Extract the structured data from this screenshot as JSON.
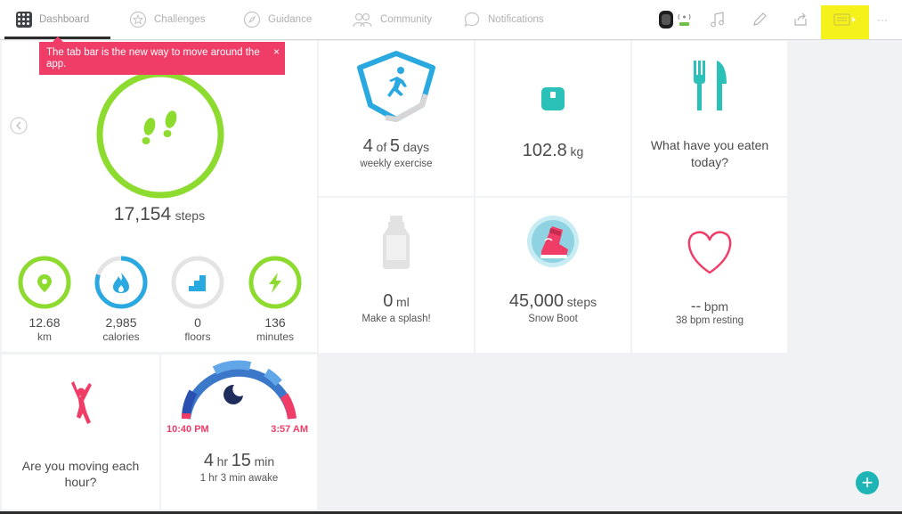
{
  "nav": {
    "tabs": [
      {
        "label": "Dashboard",
        "icon": "fitbit-logo-icon"
      },
      {
        "label": "Challenges",
        "icon": "star-icon"
      },
      {
        "label": "Guidance",
        "icon": "compass-icon"
      },
      {
        "label": "Community",
        "icon": "people-icon"
      },
      {
        "label": "Notifications",
        "icon": "chat-bubble-icon"
      }
    ],
    "right_icons": [
      "watch-sync-icon",
      "music-note-icon",
      "pencil-icon",
      "share-icon",
      "card-icon",
      "more-icon"
    ],
    "more_label": "···"
  },
  "popup": {
    "text": "The tab bar is the new way to move around the app.",
    "close": "×"
  },
  "steps": {
    "value": "17,154",
    "unit": "steps"
  },
  "stats": [
    {
      "value": "12.68",
      "label": "km",
      "icon": "location-pin-icon",
      "color": "#8cdb2e",
      "progress": 1.0
    },
    {
      "value": "2,985",
      "label": "calories",
      "icon": "flame-icon",
      "color": "#2aa8e0",
      "progress": 0.8
    },
    {
      "value": "0",
      "label": "floors",
      "icon": "stairs-icon",
      "color": "#2aa8e0",
      "progress": 0
    },
    {
      "value": "136",
      "label": "minutes",
      "icon": "lightning-icon",
      "color": "#8cdb2e",
      "progress": 1.0
    }
  ],
  "exercise": {
    "num": "4",
    "of": "of",
    "total": "5",
    "unit": "days",
    "sub": "weekly exercise"
  },
  "weight": {
    "value": "102.8",
    "unit": "kg"
  },
  "food": {
    "line1": "What have you eaten",
    "line2": "today?"
  },
  "water": {
    "value": "0",
    "unit": "ml",
    "sub": "Make a splash!"
  },
  "badge": {
    "value": "45,000",
    "unit": "steps",
    "sub": "Snow Boot"
  },
  "heart": {
    "value": "--",
    "unit": "bpm",
    "sub": "38 bpm resting"
  },
  "move": {
    "line1": "Are you moving each",
    "line2": "hour?"
  },
  "sleep": {
    "start": "10:40 PM",
    "end": "3:57 AM",
    "hr": "4",
    "hr_unit": "hr",
    "min": "15",
    "min_unit": "min",
    "sub": "1 hr 3 min awake"
  },
  "fab": {
    "label": "+"
  },
  "colors": {
    "green": "#8cdb2e",
    "blue": "#2aa8e0",
    "teal": "#2bc1b8",
    "pink": "#ef3d67",
    "highlight": "#f4f21a"
  }
}
